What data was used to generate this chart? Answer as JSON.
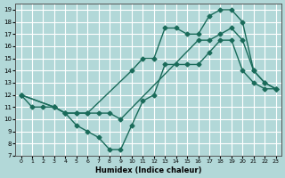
{
  "xlabel": "Humidex (Indice chaleur)",
  "xlim": [
    -0.5,
    23.5
  ],
  "ylim": [
    7,
    19.5
  ],
  "yticks": [
    7,
    8,
    9,
    10,
    11,
    12,
    13,
    14,
    15,
    16,
    17,
    18,
    19
  ],
  "xticks": [
    0,
    1,
    2,
    3,
    4,
    5,
    6,
    7,
    8,
    9,
    10,
    11,
    12,
    13,
    14,
    15,
    16,
    17,
    18,
    19,
    20,
    21,
    22,
    23
  ],
  "background_color": "#b2d8d8",
  "grid_color": "#ffffff",
  "line_color": "#1a6b5a",
  "line1_x": [
    0,
    1,
    2,
    3,
    4,
    5,
    6,
    7,
    8,
    9,
    10,
    11,
    12,
    13,
    14,
    15,
    16,
    17,
    18,
    19,
    20,
    21,
    22,
    23
  ],
  "line1_y": [
    12,
    11,
    11,
    11,
    10.5,
    9.5,
    9,
    8.5,
    7.5,
    7.5,
    9.5,
    11.5,
    12,
    14.5,
    14.5,
    14.5,
    14.5,
    15.5,
    16.5,
    16.5,
    14,
    13,
    12.5,
    12.5
  ],
  "line2_x": [
    0,
    3,
    4,
    5,
    6,
    10,
    11,
    12,
    13,
    14,
    15,
    16,
    17,
    18,
    19,
    20,
    21,
    22,
    23
  ],
  "line2_y": [
    12,
    11,
    10.5,
    10.5,
    10.5,
    14,
    15,
    15,
    17.5,
    17.5,
    17,
    17,
    18.5,
    19,
    19,
    18,
    14,
    13,
    12.5
  ],
  "line3_x": [
    0,
    3,
    4,
    5,
    6,
    7,
    8,
    9,
    16,
    17,
    18,
    19,
    20,
    21,
    22,
    23
  ],
  "line3_y": [
    12,
    11,
    10.5,
    10.5,
    10.5,
    10.5,
    10.5,
    10,
    16.5,
    16.5,
    17,
    17.5,
    16.5,
    14,
    13,
    12.5
  ],
  "line_width": 1.0,
  "marker": "D",
  "marker_size": 2.5
}
